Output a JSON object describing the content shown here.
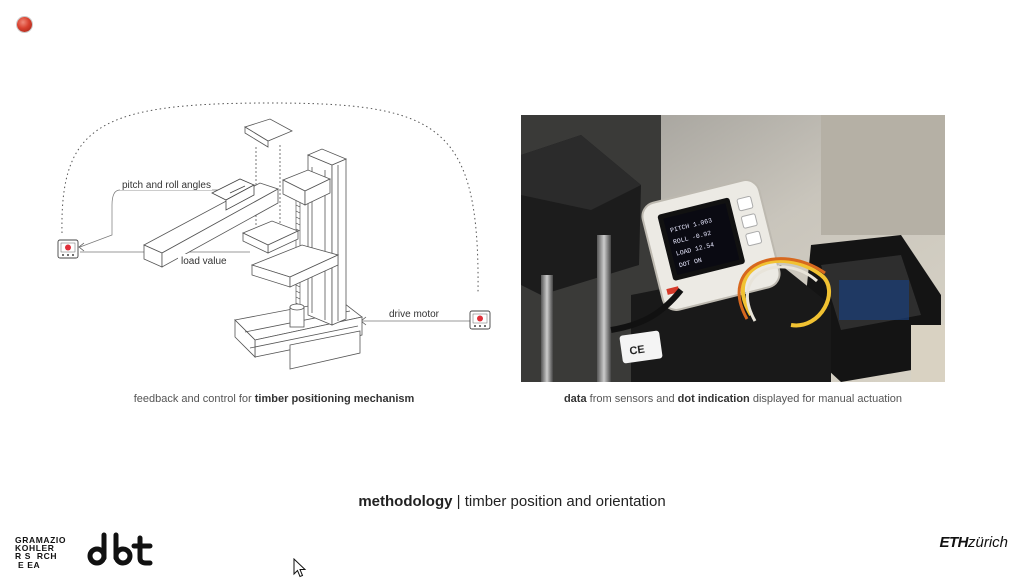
{
  "toolbar": {
    "record_icon": "record-icon"
  },
  "diagram": {
    "labels": {
      "pitch_roll": "pitch and roll angles",
      "load_value": "load value",
      "drive_motor": "drive motor"
    },
    "icons": [
      "sensor-device-icon",
      "motor-device-icon"
    ],
    "caption": {
      "prefix": "feedback and control for ",
      "bold": "timber positioning mechanism"
    }
  },
  "photo": {
    "screen_lines": [
      "PITCH 1.063",
      "ROLL -0.92",
      "LOAD 12.54",
      "DOT ON"
    ],
    "label_ce": "CE",
    "caption": {
      "b1": "data",
      "t1": " from sensors and ",
      "b2": "dot indication",
      "t2": " displayed for manual actuation"
    }
  },
  "slide": {
    "title_bold": "methodology",
    "title_rest": " | timber position and orientation"
  },
  "footer": {
    "gkr_lines": [
      "GRAMAZIO",
      "KOHLER",
      "R S  RCH",
      " E EA"
    ],
    "dbt": "dbt",
    "eth_bold": "ETH",
    "eth_rest": "zürich"
  },
  "colors": {
    "record": "#d9412f",
    "device": "#e0303a"
  }
}
